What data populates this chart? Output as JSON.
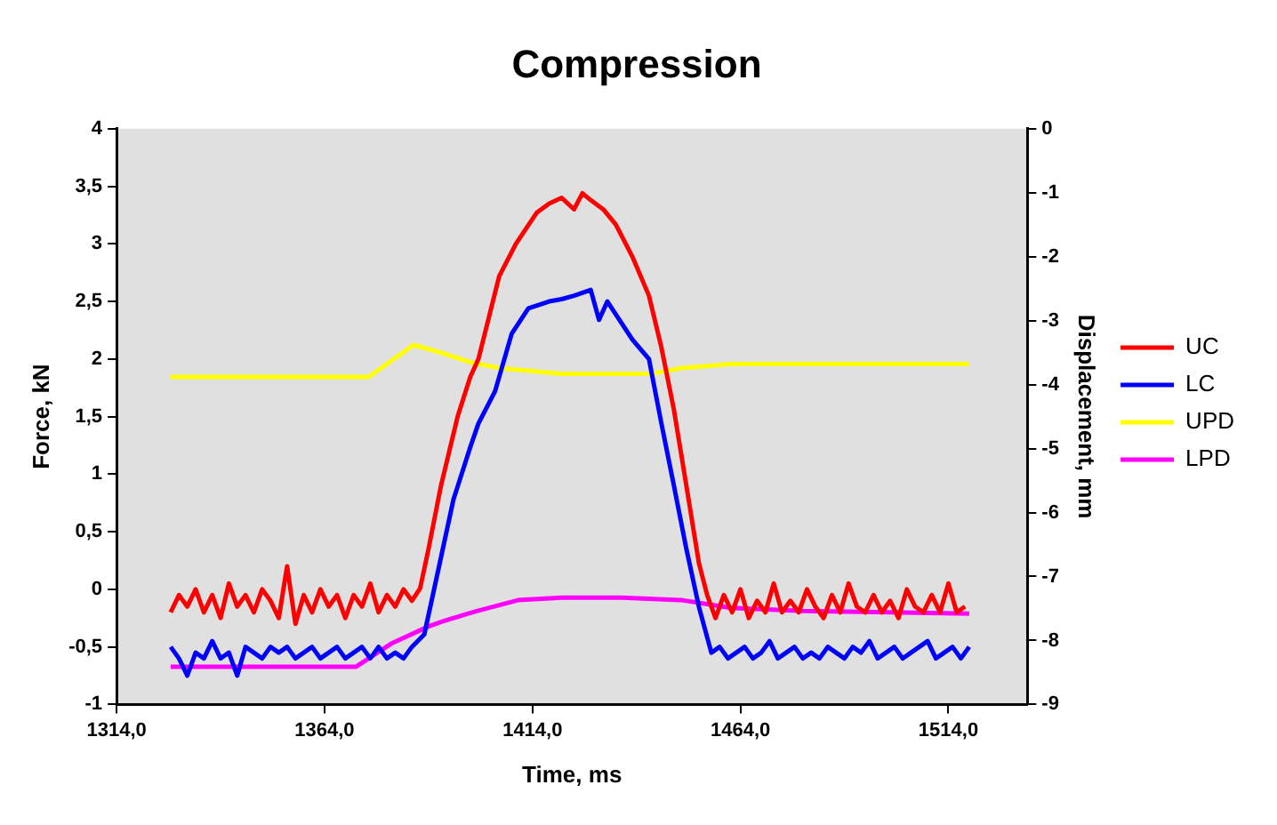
{
  "chart_data": {
    "type": "line",
    "title": "Compression",
    "xlabel": "Time, ms",
    "ylabel": "Force, kN",
    "y2label": "Displacement, mm",
    "xlim": [
      1314,
      1533
    ],
    "xticks": [
      {
        "value": 1314,
        "label": "1314,0"
      },
      {
        "value": 1364,
        "label": "1364,0"
      },
      {
        "value": 1414,
        "label": "1414,0"
      },
      {
        "value": 1464,
        "label": "1464,0"
      },
      {
        "value": 1514,
        "label": "1514,0"
      }
    ],
    "ylim": [
      -1,
      4
    ],
    "yticks": [
      -1,
      {
        "value": -0.5,
        "label": "-0,5"
      },
      0,
      {
        "value": 0.5,
        "label": "0,5"
      },
      1,
      {
        "value": 1.5,
        "label": "1,5"
      },
      2,
      {
        "value": 2.5,
        "label": "2,5"
      },
      3,
      {
        "value": 3.5,
        "label": "3,5"
      },
      4
    ],
    "y2lim": [
      -9,
      0
    ],
    "y2ticks": [
      -9,
      -8,
      -7,
      -6,
      -5,
      -4,
      -3,
      -2,
      -1,
      0
    ],
    "grid": false,
    "legend": "right",
    "marker": "none",
    "line_style": "solid",
    "series": [
      {
        "name": "UC",
        "color": "#ff0000",
        "x": [
          1327,
          1329,
          1331,
          1333,
          1335,
          1337,
          1339,
          1341,
          1343,
          1345,
          1347,
          1349,
          1351,
          1353,
          1355,
          1357,
          1359,
          1361,
          1363,
          1365,
          1367,
          1369,
          1371,
          1373,
          1375,
          1377,
          1379,
          1381,
          1383,
          1385,
          1387,
          1389,
          1392,
          1396,
          1399,
          1401,
          1406,
          1410,
          1415,
          1418,
          1421,
          1424,
          1426,
          1428,
          1431,
          1434,
          1438,
          1442,
          1445,
          1448,
          1451,
          1454,
          1456,
          1458,
          1460,
          1462,
          1464,
          1466,
          1468,
          1470,
          1472,
          1474,
          1476,
          1478,
          1480,
          1482,
          1484,
          1486,
          1488,
          1490,
          1492,
          1494,
          1496,
          1498,
          1500,
          1502,
          1504,
          1506,
          1508,
          1510,
          1512,
          1514,
          1516,
          1518
        ],
        "values": [
          -0.2,
          -0.05,
          -0.15,
          0.0,
          -0.2,
          -0.05,
          -0.25,
          0.05,
          -0.15,
          -0.05,
          -0.2,
          0.0,
          -0.1,
          -0.25,
          0.2,
          -0.3,
          -0.05,
          -0.2,
          0.0,
          -0.15,
          -0.05,
          -0.25,
          -0.05,
          -0.15,
          0.05,
          -0.2,
          -0.05,
          -0.15,
          0.0,
          -0.1,
          0.01,
          0.35,
          0.9,
          1.5,
          1.84,
          2.0,
          2.72,
          3.0,
          3.27,
          3.35,
          3.4,
          3.3,
          3.44,
          3.38,
          3.3,
          3.17,
          2.89,
          2.55,
          2.1,
          1.56,
          0.9,
          0.23,
          -0.05,
          -0.25,
          -0.05,
          -0.2,
          0.0,
          -0.25,
          -0.1,
          -0.2,
          0.05,
          -0.2,
          -0.1,
          -0.2,
          0.0,
          -0.15,
          -0.25,
          -0.05,
          -0.2,
          0.05,
          -0.15,
          -0.2,
          -0.05,
          -0.2,
          -0.1,
          -0.25,
          0.0,
          -0.15,
          -0.2,
          -0.05,
          -0.2,
          0.05,
          -0.2,
          -0.15
        ]
      },
      {
        "name": "LC",
        "color": "#0000ff",
        "x": [
          1327,
          1329,
          1331,
          1333,
          1335,
          1337,
          1339,
          1341,
          1343,
          1345,
          1347,
          1349,
          1351,
          1353,
          1355,
          1357,
          1359,
          1361,
          1363,
          1365,
          1367,
          1369,
          1371,
          1373,
          1375,
          1377,
          1379,
          1381,
          1383,
          1385,
          1388,
          1391,
          1395,
          1399,
          1401,
          1405,
          1409,
          1413,
          1418,
          1421,
          1424,
          1428,
          1430,
          1432,
          1434,
          1438,
          1442,
          1445,
          1448,
          1451,
          1454,
          1457,
          1459,
          1461,
          1463,
          1465,
          1467,
          1469,
          1471,
          1473,
          1475,
          1477,
          1479,
          1481,
          1483,
          1485,
          1487,
          1489,
          1491,
          1493,
          1495,
          1497,
          1499,
          1501,
          1503,
          1505,
          1507,
          1509,
          1511,
          1513,
          1515,
          1517,
          1519
        ],
        "values": [
          -0.5,
          -0.6,
          -0.75,
          -0.55,
          -0.6,
          -0.45,
          -0.6,
          -0.55,
          -0.75,
          -0.5,
          -0.55,
          -0.6,
          -0.5,
          -0.55,
          -0.5,
          -0.6,
          -0.55,
          -0.5,
          -0.6,
          -0.55,
          -0.5,
          -0.6,
          -0.55,
          -0.5,
          -0.6,
          -0.5,
          -0.6,
          -0.55,
          -0.6,
          -0.5,
          -0.39,
          0.11,
          0.78,
          1.23,
          1.44,
          1.72,
          2.22,
          2.44,
          2.5,
          2.52,
          2.55,
          2.6,
          2.34,
          2.5,
          2.39,
          2.17,
          2.0,
          1.44,
          0.9,
          0.35,
          -0.15,
          -0.55,
          -0.5,
          -0.6,
          -0.55,
          -0.5,
          -0.6,
          -0.55,
          -0.45,
          -0.6,
          -0.55,
          -0.5,
          -0.6,
          -0.55,
          -0.6,
          -0.5,
          -0.55,
          -0.6,
          -0.5,
          -0.55,
          -0.45,
          -0.6,
          -0.55,
          -0.5,
          -0.6,
          -0.55,
          -0.5,
          -0.45,
          -0.6,
          -0.55,
          -0.5,
          -0.6,
          -0.5
        ]
      },
      {
        "name": "UPD",
        "color": "#ffff00",
        "axis": "y2",
        "x": [
          1327,
          1374.6,
          1385.4,
          1392,
          1399,
          1406,
          1421,
          1442.6,
          1450,
          1461.6,
          1519
        ],
        "values": [
          -3.88,
          -3.88,
          -3.38,
          -3.5,
          -3.65,
          -3.74,
          -3.83,
          -3.83,
          -3.74,
          -3.68,
          -3.68
        ]
      },
      {
        "name": "LPD",
        "color": "#ff00ff",
        "axis": "y2",
        "x": [
          1327,
          1371.6,
          1380,
          1389,
          1392,
          1397.5,
          1400.6,
          1410.5,
          1421,
          1435.5,
          1450,
          1461.6,
          1479,
          1519
        ],
        "values": [
          -8.41,
          -8.41,
          -8.05,
          -7.78,
          -7.71,
          -7.6,
          -7.54,
          -7.37,
          -7.33,
          -7.33,
          -7.37,
          -7.49,
          -7.54,
          -7.58
        ]
      }
    ]
  }
}
